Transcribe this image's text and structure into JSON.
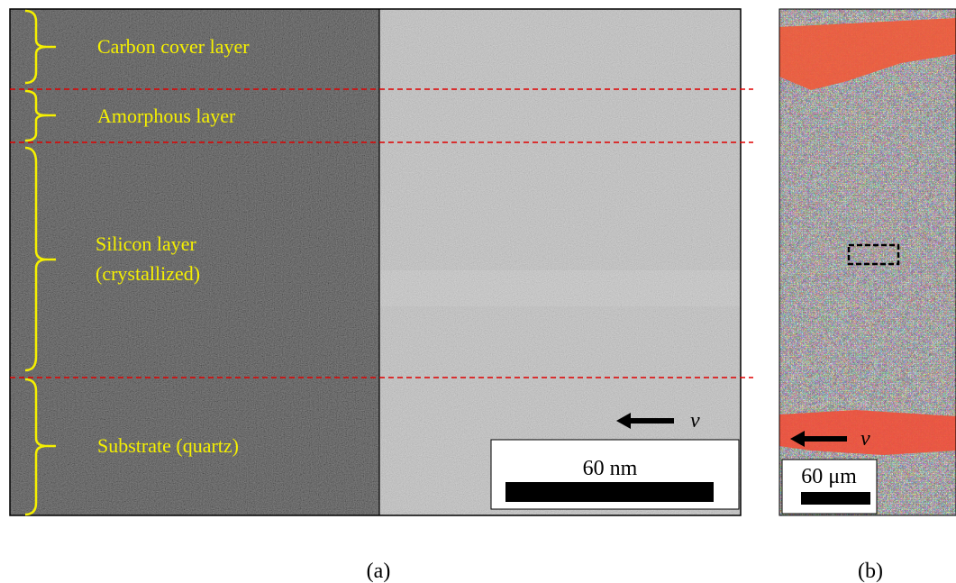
{
  "panels": [
    {
      "label": "(a)",
      "layers": [
        {
          "lines": [
            "Carbon cover layer"
          ]
        },
        {
          "lines": [
            "Amorphous layer"
          ]
        },
        {
          "lines": [
            "Silicon layer",
            "(crystallized)"
          ]
        },
        {
          "lines": [
            "Substrate (quartz)"
          ]
        }
      ],
      "velocity": "v",
      "scale_bar": "60 nm"
    },
    {
      "label": "(b)",
      "velocity": "v",
      "scale_bar": "60 μm"
    }
  ]
}
